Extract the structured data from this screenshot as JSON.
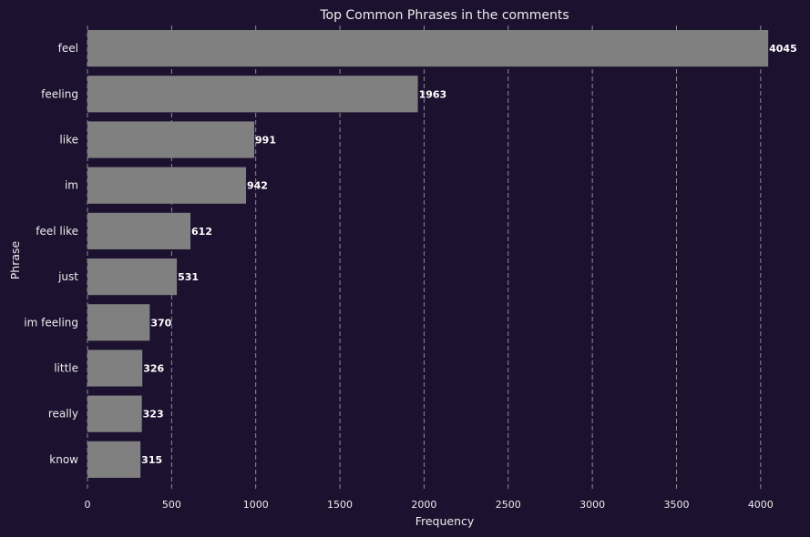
{
  "chart_data": {
    "type": "bar",
    "orientation": "horizontal",
    "title": "Top Common Phrases in the comments",
    "xlabel": "Frequency",
    "ylabel": "Phrase",
    "categories": [
      "feel",
      "feeling",
      "like",
      "im",
      "feel like",
      "just",
      "im feeling",
      "little",
      "really",
      "know"
    ],
    "values": [
      4045,
      1963,
      991,
      942,
      612,
      531,
      370,
      326,
      323,
      315
    ],
    "xlim": [
      0,
      4250
    ],
    "xticks": [
      0,
      500,
      1000,
      1500,
      2000,
      2500,
      3000,
      3500,
      4000
    ],
    "grid": "x-dashed",
    "bar_color": "#808080",
    "background_color": "#1c1230",
    "text_color": "#ececec"
  }
}
